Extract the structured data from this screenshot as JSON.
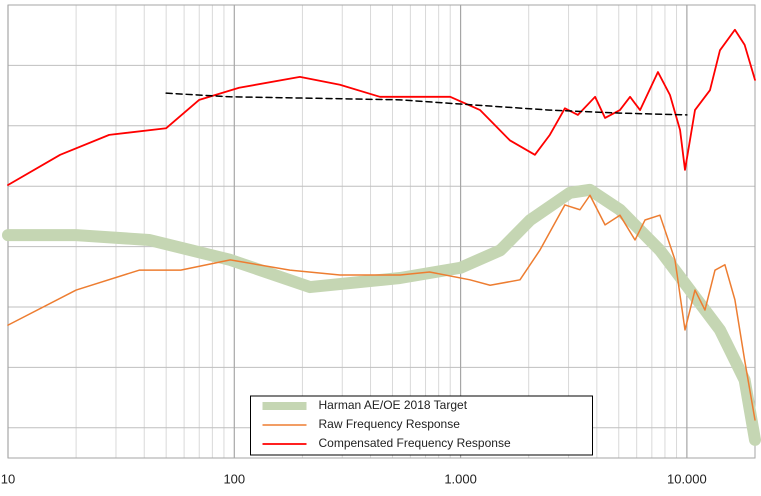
{
  "chart_data": {
    "type": "line",
    "xscale": "log",
    "xlim": [
      10,
      20000
    ],
    "ylim": [
      0,
      75
    ],
    "xticks": [
      10,
      100,
      {
        "value": 1000,
        "label": "1.000"
      },
      {
        "value": 10000,
        "label": "10.000"
      }
    ],
    "ygrid": [
      5,
      15,
      25,
      35,
      45,
      55,
      65
    ],
    "grid": true,
    "legend": "bottom-center",
    "series": [
      {
        "name": "Harman AE/OE 2018 Target",
        "color": "#c5d6b3",
        "width": 12,
        "style": "solid",
        "x": [
          10,
          20,
          42,
          96,
          216,
          540,
          1000,
          1500,
          2030,
          3040,
          3730,
          5060,
          7600,
          10320,
          14000,
          18000,
          20000
        ],
        "values": [
          36.9,
          36.9,
          36.1,
          32.8,
          28.3,
          29.8,
          31.5,
          34.4,
          39.4,
          43.9,
          44.4,
          41.1,
          34.4,
          27.8,
          21.2,
          12.9,
          3.0
        ]
      },
      {
        "name": "Raw Frequency Response",
        "color": "#ed7d31",
        "width": 1.5,
        "style": "solid",
        "x": [
          10,
          20,
          38,
          58,
          96,
          176,
          293,
          540,
          730,
          1100,
          1350,
          1830,
          2240,
          2890,
          3370,
          3730,
          4350,
          5060,
          5900,
          6530,
          7600,
          8860,
          9810,
          10860,
          12020,
          13310,
          14720,
          16300,
          18000,
          20000
        ],
        "values": [
          22.0,
          27.8,
          31.1,
          31.1,
          32.8,
          31.1,
          30.3,
          30.3,
          30.8,
          29.5,
          28.6,
          29.5,
          34.4,
          41.9,
          41.1,
          43.5,
          38.6,
          40.2,
          36.1,
          39.4,
          40.2,
          32.8,
          21.2,
          27.8,
          24.5,
          31.1,
          32.0,
          26.2,
          16.2,
          6.3
        ]
      },
      {
        "name": "Compensated Frequency Response",
        "color": "#ff0000",
        "width": 1.8,
        "style": "solid",
        "x": [
          10,
          17,
          28,
          50,
          70,
          105,
          195,
          293,
          440,
          660,
          900,
          1220,
          1650,
          2130,
          2480,
          2890,
          3300,
          3930,
          4350,
          5060,
          5610,
          6210,
          7450,
          8420,
          9330,
          9810,
          10860,
          12650,
          14000,
          16300,
          18000,
          20000
        ],
        "values": [
          45.2,
          50.2,
          53.5,
          54.6,
          59.3,
          61.3,
          63.1,
          61.8,
          59.8,
          59.8,
          59.8,
          57.6,
          52.6,
          50.2,
          53.5,
          57.9,
          56.8,
          59.8,
          56.3,
          57.6,
          59.8,
          57.6,
          63.9,
          60.1,
          54.3,
          47.7,
          57.6,
          60.9,
          67.5,
          70.9,
          68.4,
          62.6
        ]
      },
      {
        "color": "#000000",
        "width": 1.5,
        "style": "dashed",
        "x": [
          50,
          96,
          195,
          540,
          1000,
          2480,
          5060,
          10000
        ],
        "values": [
          60.4,
          59.8,
          59.6,
          59.3,
          58.6,
          57.6,
          57.1,
          56.8
        ]
      }
    ]
  }
}
